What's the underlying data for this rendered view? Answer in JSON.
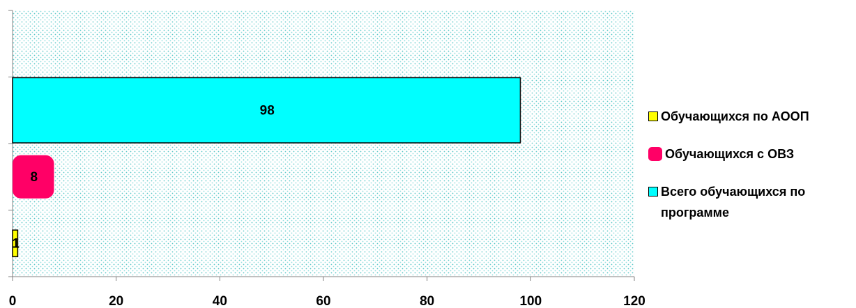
{
  "chart_data": {
    "type": "bar",
    "orientation": "horizontal",
    "series": [
      {
        "name": "Обучающихся по АООП",
        "color": "#ffff00",
        "values": [
          1
        ]
      },
      {
        "name": "Обучающихся с ОВЗ",
        "color": "#ff0066",
        "values": [
          8
        ]
      },
      {
        "name": "Всего обучающихся по программе",
        "color": "#00ffff",
        "values": [
          98
        ]
      }
    ],
    "xlim": [
      0,
      120
    ],
    "xticks": [
      0,
      20,
      40,
      60,
      80,
      100,
      120
    ],
    "legend": "right"
  }
}
